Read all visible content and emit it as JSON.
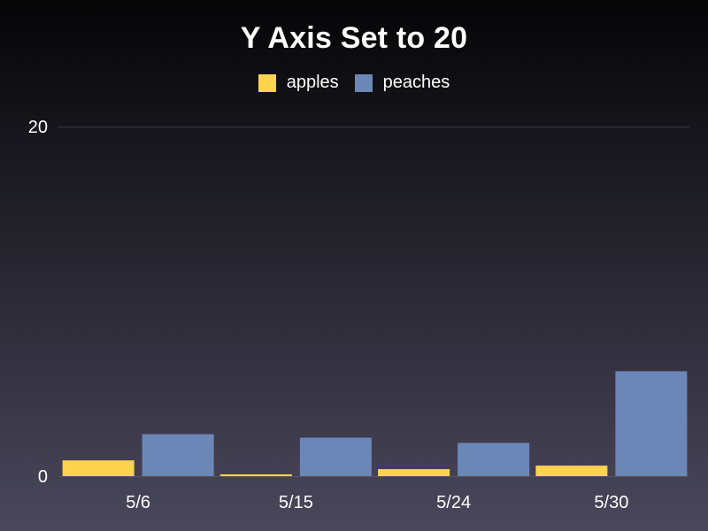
{
  "chart_data": {
    "type": "bar",
    "title": "Y Axis Set to 20",
    "categories": [
      "5/6",
      "5/15",
      "5/24",
      "5/30"
    ],
    "series": [
      {
        "name": "apples",
        "color": "#ffd34e",
        "values": [
          0.9,
          0.1,
          0.4,
          0.6
        ]
      },
      {
        "name": "peaches",
        "color": "#6b87b8",
        "values": [
          2.4,
          2.2,
          1.9,
          6.0
        ]
      }
    ],
    "ylim": [
      0,
      20
    ],
    "yticks": [
      0,
      20
    ],
    "xlabel": "",
    "ylabel": "",
    "legend": "top-center",
    "grid": true
  }
}
